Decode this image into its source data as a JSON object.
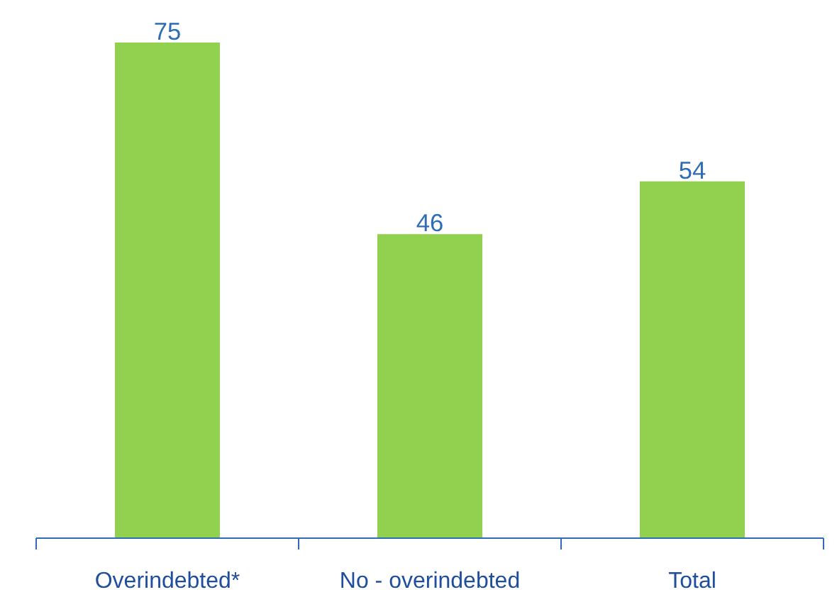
{
  "chart_data": {
    "type": "bar",
    "categories": [
      "Overindebted*",
      "No - overindebted",
      "Total"
    ],
    "values": [
      75,
      46,
      54
    ],
    "color": "#92d050",
    "data_labels": true
  }
}
